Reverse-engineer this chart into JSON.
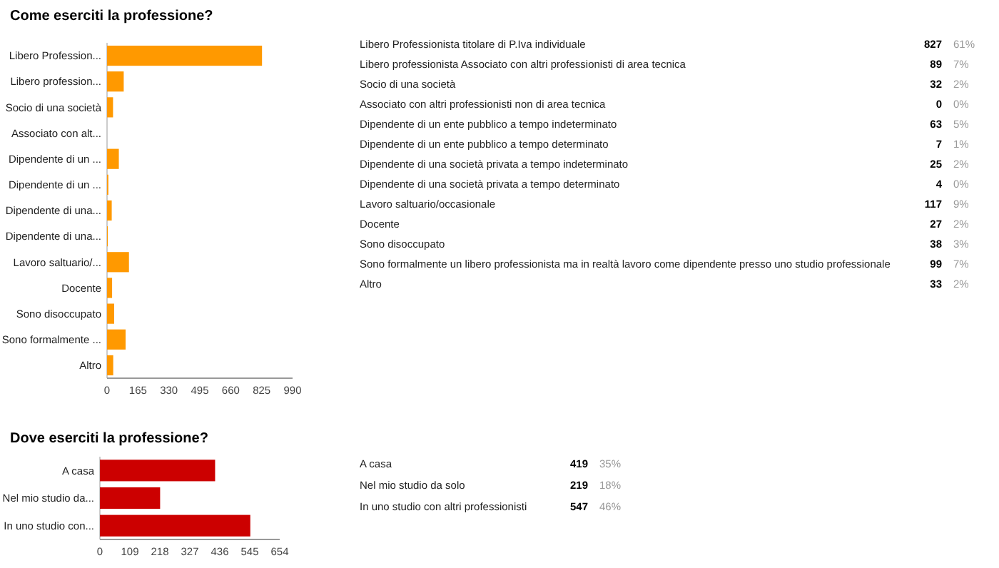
{
  "chart_data": [
    {
      "type": "bar",
      "orientation": "horizontal",
      "title": "Come eserciti la professione?",
      "categories": [
        "Libero Profession...",
        "Libero profession...",
        "Socio di una società",
        "Associato con alt...",
        "Dipendente di un ...",
        "Dipendente di un ...",
        "Dipendente di una...",
        "Dipendente di una...",
        "Lavoro saltuario/...",
        "Docente",
        "Sono disoccupato",
        "Sono formalmente ...",
        "Altro"
      ],
      "values": [
        827,
        89,
        32,
        0,
        63,
        7,
        25,
        4,
        117,
        27,
        38,
        99,
        33
      ],
      "color": "#ff9900",
      "xlim": [
        0,
        990
      ],
      "xticks": [
        0,
        165,
        330,
        495,
        660,
        825,
        990
      ]
    },
    {
      "type": "other",
      "categories": [
        "Libero Professionista titolare di P.Iva individuale",
        "Libero professionista Associato con altri professionisti di area tecnica",
        "Socio di una società",
        "Associato con altri professionisti non di area tecnica",
        "Dipendente di un ente pubblico a tempo indeterminato",
        "Dipendente di un ente pubblico a tempo determinato",
        "Dipendente di una società privata a tempo indeterminato",
        "Dipendente di una società privata a tempo determinato",
        "Lavoro saltuario/occasionale",
        "Docente",
        "Sono disoccupato",
        "Sono formalmente un libero professionista ma in realtà lavoro come dipendente presso uno studio professionale",
        "Altro"
      ],
      "data_labels": true,
      "series": [
        {
          "values": [
            827,
            89,
            32,
            0,
            63,
            7,
            25,
            4,
            117,
            27,
            38,
            99,
            33
          ]
        },
        {
          "values": [
            61,
            7,
            2,
            0,
            5,
            1,
            2,
            0,
            9,
            2,
            3,
            7,
            2
          ],
          "value_labels": [
            "61%",
            "7%",
            "2%",
            "0%",
            "5%",
            "1%",
            "2%",
            "0%",
            "9%",
            "2%",
            "3%",
            "7%",
            "2%"
          ]
        }
      ]
    },
    {
      "type": "bar",
      "orientation": "horizontal",
      "title": "Dove eserciti la professione?",
      "categories": [
        "A casa",
        "Nel mio studio da...",
        "In uno studio con..."
      ],
      "values": [
        419,
        219,
        547
      ],
      "color": "#cc0000",
      "xlim": [
        0,
        654
      ],
      "xticks": [
        0,
        109,
        218,
        327,
        436,
        545,
        654
      ]
    },
    {
      "type": "other",
      "categories": [
        "A casa",
        "Nel mio studio da solo",
        "In uno studio con altri professionisti"
      ],
      "data_labels": true,
      "series": [
        {
          "values": [
            419,
            219,
            547
          ]
        },
        {
          "values": [
            35,
            18,
            46
          ],
          "value_labels": [
            "35%",
            "18%",
            "46%"
          ]
        }
      ]
    }
  ]
}
